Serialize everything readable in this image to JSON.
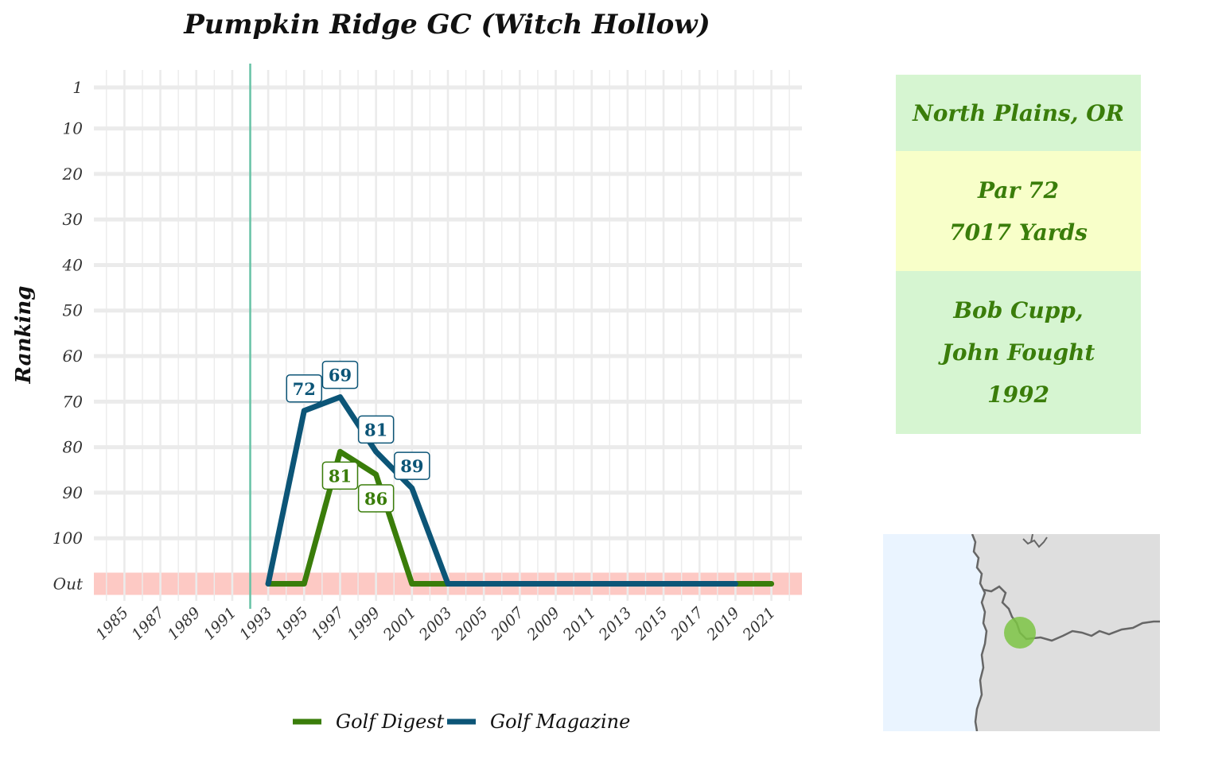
{
  "chart_data": {
    "type": "line",
    "title": "Pumpkin Ridge GC (Witch Hollow)",
    "ylabel": "Ranking",
    "xlabel": "",
    "x_ticks": [
      1985,
      1987,
      1989,
      1991,
      1993,
      1995,
      1997,
      1999,
      2001,
      2003,
      2005,
      2007,
      2009,
      2011,
      2013,
      2015,
      2017,
      2019,
      2021
    ],
    "xlim": [
      1983.3,
      2022.7
    ],
    "y_ticks": [
      "1",
      "10",
      "20",
      "30",
      "40",
      "50",
      "60",
      "70",
      "80",
      "90",
      "100",
      "Out"
    ],
    "y_tick_values": [
      1,
      10,
      20,
      30,
      40,
      50,
      60,
      70,
      80,
      90,
      100,
      110
    ],
    "y_reversed": true,
    "out_band": {
      "label": "Out",
      "color": "#fdc9c4"
    },
    "reference_line": {
      "x": 1992,
      "color": "#66c2a5"
    },
    "grid": true,
    "legend_position": "bottom",
    "series": [
      {
        "name": "Golf Digest",
        "color": "#3a7d0a",
        "points": [
          [
            1993,
            "Out"
          ],
          [
            1995,
            "Out"
          ],
          [
            1997,
            81
          ],
          [
            1999,
            86
          ],
          [
            2001,
            "Out"
          ],
          [
            2003,
            "Out"
          ],
          [
            2019,
            "Out"
          ],
          [
            2021,
            "Out"
          ]
        ],
        "labels": [
          [
            1997,
            81
          ],
          [
            1999,
            86
          ]
        ]
      },
      {
        "name": "Golf Magazine",
        "color": "#0c5577",
        "points": [
          [
            1993,
            "Out"
          ],
          [
            1995,
            72
          ],
          [
            1997,
            69
          ],
          [
            1999,
            81
          ],
          [
            2001,
            89
          ],
          [
            2003,
            "Out"
          ],
          [
            2019,
            "Out"
          ]
        ],
        "labels": [
          [
            1995,
            72
          ],
          [
            1997,
            69
          ],
          [
            1999,
            81
          ],
          [
            2001,
            89
          ]
        ]
      }
    ]
  },
  "info": {
    "location": "North Plains, OR",
    "par": "Par 72",
    "yards": "7017 Yards",
    "designer_1": "Bob Cupp,",
    "designer_2": "John Fought",
    "year": "1992",
    "colors": {
      "green_box": "#d6f5d1",
      "yellow_box": "#f8ffc9",
      "text": "#3a7d0a"
    }
  },
  "map": {
    "ocean_color": "#eaf4ff",
    "land_color": "#dedede",
    "marker_color": "#7cc444"
  }
}
